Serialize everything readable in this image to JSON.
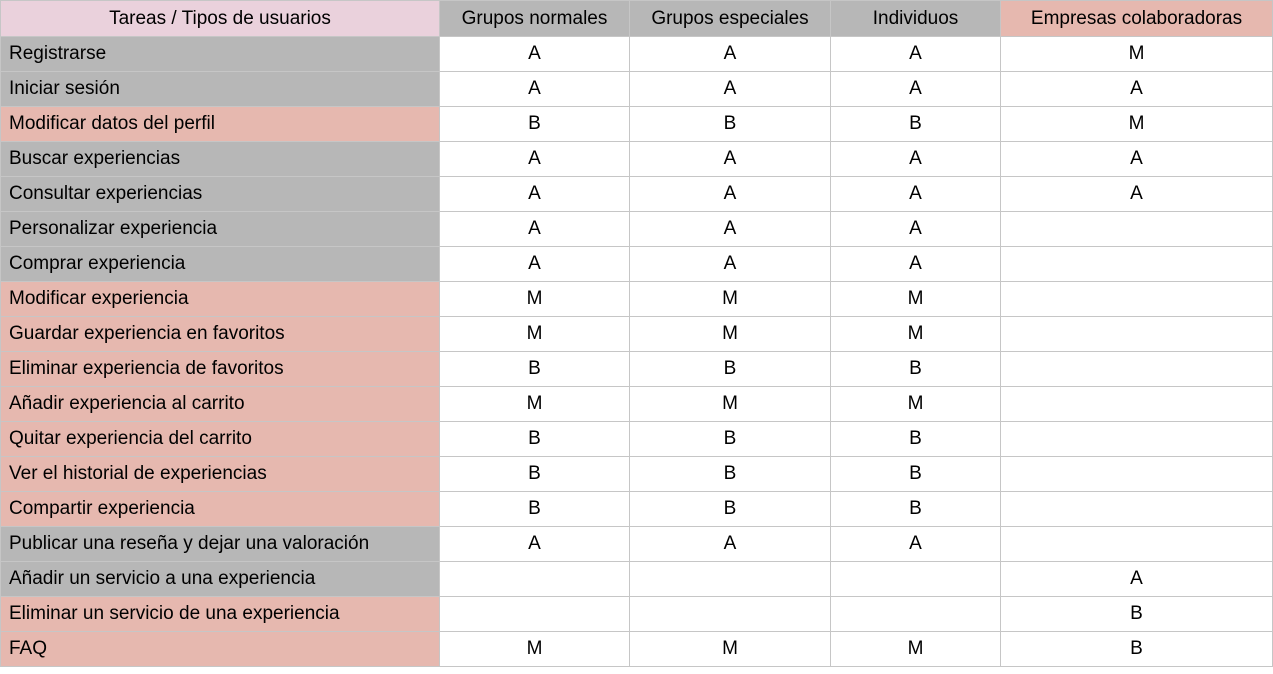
{
  "colors": {
    "header_task": "#ead1dc",
    "header_gray": "#b7b7b7",
    "header_companies": "#e6b8af",
    "row_gray": "#b7b7b7",
    "row_pink": "#e6b8af",
    "cell": "#ffffff",
    "border": "#c6c6c6"
  },
  "headers": [
    {
      "label": "Tareas / Tipos de usuarios",
      "color": "header_task"
    },
    {
      "label": "Grupos normales",
      "color": "header_gray"
    },
    {
      "label": "Grupos especiales",
      "color": "header_gray"
    },
    {
      "label": "Individuos",
      "color": "header_gray"
    },
    {
      "label": "Empresas colaboradoras",
      "color": "header_companies"
    }
  ],
  "rows": [
    {
      "task": "Registrarse",
      "color": "row_gray",
      "values": [
        "A",
        "A",
        "A",
        "M"
      ]
    },
    {
      "task": "Iniciar sesión",
      "color": "row_gray",
      "values": [
        "A",
        "A",
        "A",
        "A"
      ]
    },
    {
      "task": "Modificar datos del perfil",
      "color": "row_pink",
      "values": [
        "B",
        "B",
        "B",
        "M"
      ]
    },
    {
      "task": "Buscar experiencias",
      "color": "row_gray",
      "values": [
        "A",
        "A",
        "A",
        "A"
      ]
    },
    {
      "task": "Consultar experiencias",
      "color": "row_gray",
      "values": [
        "A",
        "A",
        "A",
        "A"
      ]
    },
    {
      "task": "Personalizar experiencia",
      "color": "row_gray",
      "values": [
        "A",
        "A",
        "A",
        ""
      ]
    },
    {
      "task": "Comprar experiencia",
      "color": "row_gray",
      "values": [
        "A",
        "A",
        "A",
        ""
      ]
    },
    {
      "task": "Modificar experiencia",
      "color": "row_pink",
      "values": [
        "M",
        "M",
        "M",
        ""
      ]
    },
    {
      "task": "Guardar experiencia en favoritos",
      "color": "row_pink",
      "values": [
        "M",
        "M",
        "M",
        ""
      ]
    },
    {
      "task": "Eliminar experiencia de favoritos",
      "color": "row_pink",
      "values": [
        "B",
        "B",
        "B",
        ""
      ]
    },
    {
      "task": "Añadir experiencia al carrito",
      "color": "row_pink",
      "values": [
        "M",
        "M",
        "M",
        ""
      ]
    },
    {
      "task": "Quitar experiencia del carrito",
      "color": "row_pink",
      "values": [
        "B",
        "B",
        "B",
        ""
      ]
    },
    {
      "task": "Ver el historial de experiencias",
      "color": "row_pink",
      "values": [
        "B",
        "B",
        "B",
        ""
      ]
    },
    {
      "task": "Compartir experiencia",
      "color": "row_pink",
      "values": [
        "B",
        "B",
        "B",
        ""
      ]
    },
    {
      "task": "Publicar una reseña y dejar una valoración",
      "color": "row_gray",
      "values": [
        "A",
        "A",
        "A",
        ""
      ]
    },
    {
      "task": "Añadir un servicio a una experiencia",
      "color": "row_gray",
      "values": [
        "",
        "",
        "",
        "A"
      ]
    },
    {
      "task": "Eliminar un servicio de una experiencia",
      "color": "row_pink",
      "values": [
        "",
        "",
        "",
        "B"
      ]
    },
    {
      "task": "FAQ",
      "color": "row_pink",
      "values": [
        "M",
        "M",
        "M",
        "B"
      ]
    }
  ]
}
